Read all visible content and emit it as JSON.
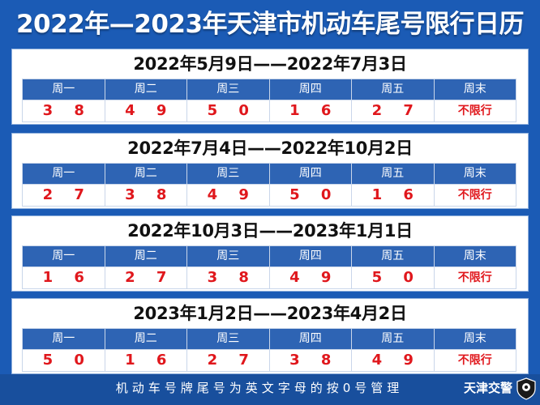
{
  "title": "2022年—2023年天津市机动车尾号限行日历",
  "weekday_headers": [
    "周一",
    "周二",
    "周三",
    "周四",
    "周五",
    "周末"
  ],
  "periods": [
    {
      "range": "2022年5月9日——2022年7月3日",
      "digits": [
        "3 8",
        "4 9",
        "5 0",
        "1 6",
        "2 7",
        "不限行"
      ]
    },
    {
      "range": "2022年7月4日——2022年10月2日",
      "digits": [
        "2 7",
        "3 8",
        "4 9",
        "5 0",
        "1 6",
        "不限行"
      ]
    },
    {
      "range": "2022年10月3日——2023年1月1日",
      "digits": [
        "1 6",
        "2 7",
        "3 8",
        "4 9",
        "5 0",
        "不限行"
      ]
    },
    {
      "range": "2023年1月2日——2023年4月2日",
      "digits": [
        "5 0",
        "1 6",
        "2 7",
        "3 8",
        "4 9",
        "不限行"
      ]
    }
  ],
  "footer": {
    "note": "机动车号牌尾号为英文字母的按0号管理",
    "brand": "天津交警"
  },
  "colors": {
    "background": "#1b5bb5",
    "header_cell": "#2e64b4",
    "digit_red": "#e0171c",
    "footer_bar": "#184f9d"
  },
  "icons": {
    "badge": "traffic-police-badge-icon"
  }
}
